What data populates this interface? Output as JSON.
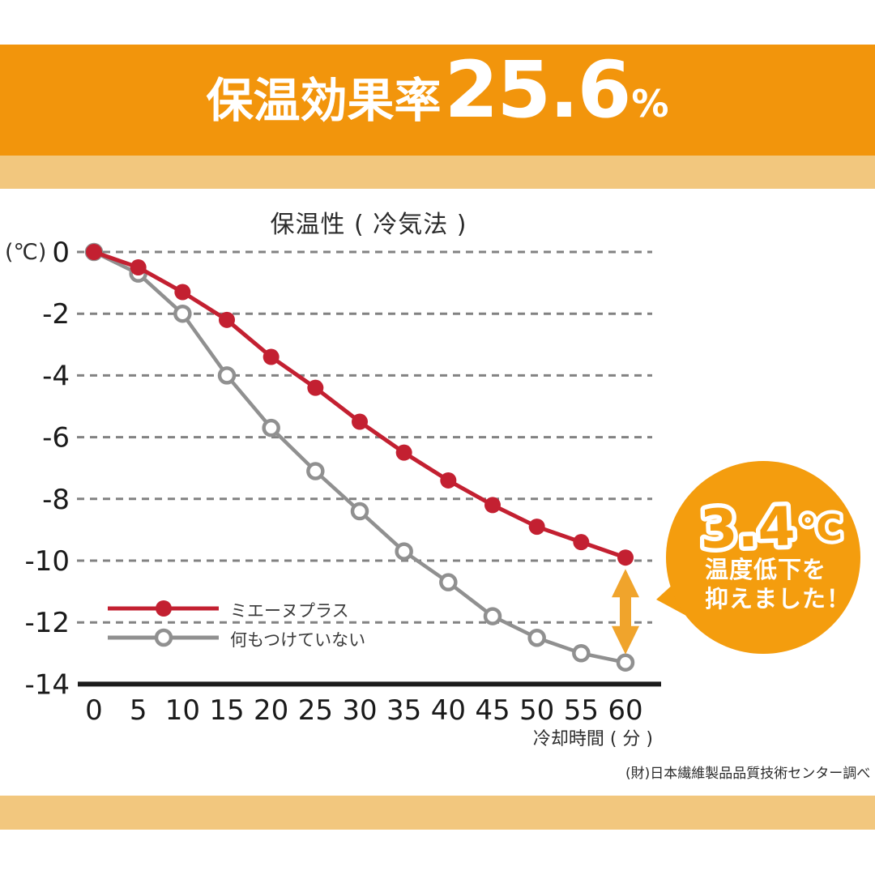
{
  "header": {
    "title_prefix": "保温効果率",
    "title_value": "25.6",
    "title_unit": "%"
  },
  "chart_data": {
    "type": "line",
    "title": "保温性 ( 冷気法 )",
    "y_unit_label": "(℃)",
    "xlabel": "冷却時間 ( 分 )",
    "x": [
      0,
      5,
      10,
      15,
      20,
      25,
      30,
      35,
      40,
      45,
      50,
      55,
      60
    ],
    "ylim": [
      -14,
      0
    ],
    "yticks": [
      0,
      -2,
      -4,
      -6,
      -8,
      -10,
      -12,
      -14
    ],
    "grid": "horizontal-dashed",
    "legend_position": "inside-lower-left",
    "series": [
      {
        "name": "ミエーヌプラス",
        "marker": "filled-circle",
        "color": "#c32031",
        "values": [
          0,
          -0.5,
          -1.3,
          -2.2,
          -3.4,
          -4.4,
          -5.5,
          -6.5,
          -7.4,
          -8.2,
          -8.9,
          -9.4,
          -9.9
        ]
      },
      {
        "name": "何もつけていない",
        "marker": "open-circle",
        "color": "#909090",
        "values": [
          0,
          -0.7,
          -2.0,
          -4.0,
          -5.7,
          -7.1,
          -8.4,
          -9.7,
          -10.7,
          -11.8,
          -12.5,
          -13.0,
          -13.3
        ]
      }
    ]
  },
  "annotation": {
    "value": "3.4",
    "unit": "℃",
    "line1": "温度低下を",
    "line2": "抑えました！"
  },
  "footer": {
    "source": "(財)日本繊維製品品質技術センター調べ"
  },
  "colors": {
    "banner_orange": "#f2950c",
    "light_orange": "#f2c77e",
    "badge_orange": "#f49d0e",
    "arrow_orange": "#f0a42c",
    "red_series": "#c32031",
    "gray_series": "#909090",
    "gridline": "#828282",
    "axis": "#1c1c1c"
  }
}
